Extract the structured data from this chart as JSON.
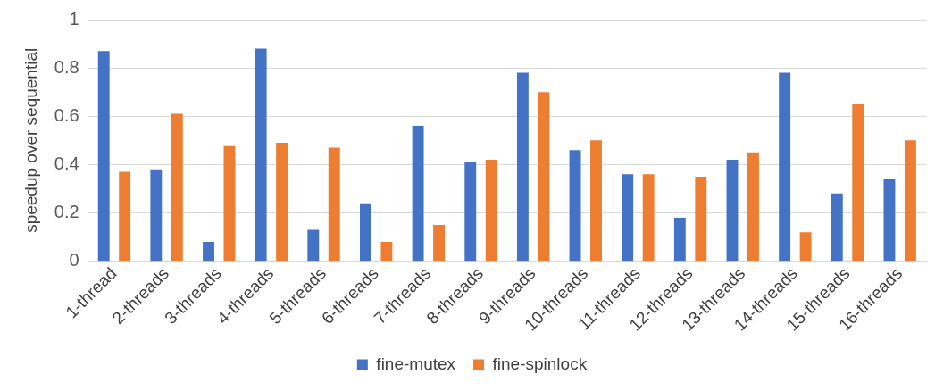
{
  "chart_data": {
    "type": "bar",
    "ylabel": "speedup over sequential",
    "categories": [
      "1-thread",
      "2-threads",
      "3-threads",
      "4-threads",
      "5-threads",
      "6-threads",
      "7-threads",
      "8-threads",
      "9-threads",
      "10-threads",
      "11-threads",
      "12-threads",
      "13-threads",
      "14-threads",
      "15-threads",
      "16-threads"
    ],
    "series": [
      {
        "name": "fine-mutex",
        "color": "#4472c4",
        "values": [
          0.87,
          0.38,
          0.08,
          0.88,
          0.13,
          0.24,
          0.56,
          0.41,
          0.78,
          0.46,
          0.36,
          0.18,
          0.42,
          0.78,
          0.28,
          0.34
        ]
      },
      {
        "name": "fine-spinlock",
        "color": "#ed7d31",
        "values": [
          0.37,
          0.61,
          0.48,
          0.49,
          0.47,
          0.08,
          0.15,
          0.42,
          0.7,
          0.5,
          0.36,
          0.35,
          0.45,
          0.12,
          0.65,
          0.5
        ]
      }
    ],
    "ylim": [
      0,
      1
    ],
    "yticks": [
      0,
      0.2,
      0.4,
      0.6,
      0.8,
      1
    ],
    "grid": "y",
    "legend": "bottom"
  }
}
